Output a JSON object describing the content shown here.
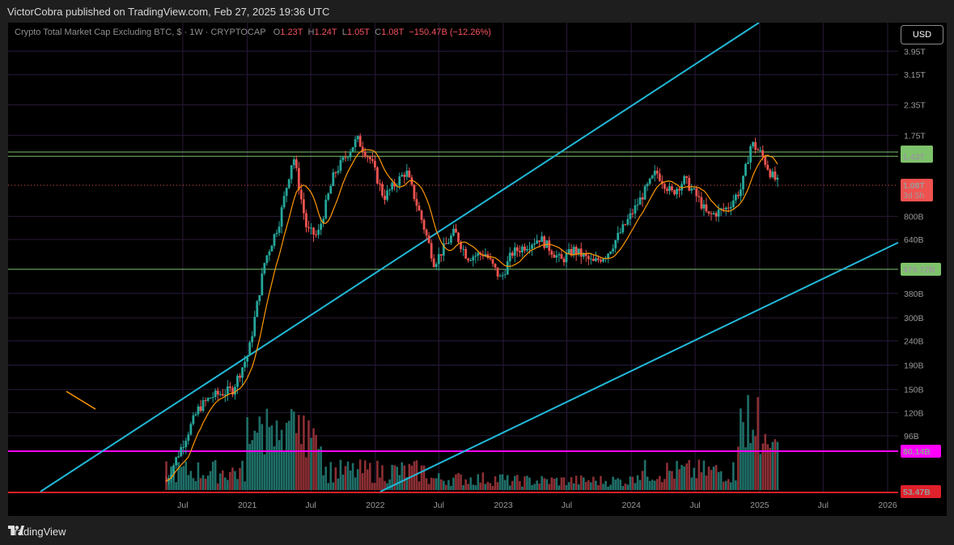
{
  "header": {
    "publisher_line": "VictorCobra published on TradingView.com, Feb 27, 2025 19:36 UTC"
  },
  "footer": {
    "brand": "TradingView"
  },
  "legend": {
    "symbol": "Crypto Total Market Cap Excluding BTC, $ · 1W · CRYPTOCAP",
    "o_label": "O",
    "o_value": "1.23T",
    "h_label": "H",
    "h_value": "1.24T",
    "l_label": "L",
    "l_value": "1.05T",
    "c_label": "C",
    "c_value": "1.08T",
    "change": "−150.47B (−12.26%)"
  },
  "currency_button": "USD",
  "colors": {
    "up": "#26a69a",
    "down": "#ef5350",
    "ma": "#ff9800",
    "trendline": "#22b8d8",
    "level": "#7ec26b",
    "magenta": "#ff00ff",
    "grid": "#2a1a3a"
  },
  "chart_data": {
    "type": "candlestick",
    "title": "Crypto Total Market Cap Excluding BTC",
    "interval": "1W",
    "scale": "log",
    "y_tick_labels": [
      "3.95T",
      "3.15T",
      "2.35T",
      "1.75T",
      "800B",
      "640B",
      "380B",
      "300B",
      "240B",
      "190B",
      "150B",
      "120B",
      "96B"
    ],
    "x_tick_labels": [
      "Jul",
      "2021",
      "Jul",
      "2022",
      "Jul",
      "2023",
      "Jul",
      "2024",
      "Jul",
      "2025",
      "Jul",
      "2026"
    ],
    "horizontal_levels": [
      {
        "label": "1.49T",
        "value": 1490,
        "color": "#7ec26b"
      },
      {
        "label": "1.43T",
        "value": 1430,
        "color": "#7ec26b"
      },
      {
        "label": "479.72B",
        "value": 479.72,
        "color": "#7ec26b"
      },
      {
        "label": "80.14B",
        "value": 80.14,
        "color": "#ff00ff"
      },
      {
        "label": "53.47B",
        "value": 53.47,
        "color": "#e0202a"
      }
    ],
    "last_price": {
      "label": "1.08T",
      "countdown": "3d 5h",
      "value": 1080
    },
    "price_series_billions": {
      "start": "2020-05",
      "end": "2025-02",
      "anchors": [
        [
          "2020-05-15",
          62
        ],
        [
          "2020-08-15",
          125
        ],
        [
          "2020-09-20",
          140
        ],
        [
          "2020-11-20",
          150
        ],
        [
          "2021-01-05",
          215
        ],
        [
          "2021-02-20",
          520
        ],
        [
          "2021-04-01",
          750
        ],
        [
          "2021-05-12",
          1450
        ],
        [
          "2021-06-20",
          700
        ],
        [
          "2021-07-20",
          660
        ],
        [
          "2021-09-05",
          1200
        ],
        [
          "2021-11-10",
          1690
        ],
        [
          "2021-12-20",
          1370
        ],
        [
          "2022-01-25",
          960
        ],
        [
          "2022-03-30",
          1240
        ],
        [
          "2022-05-15",
          760
        ],
        [
          "2022-06-18",
          510
        ],
        [
          "2022-08-15",
          690
        ],
        [
          "2022-09-20",
          540
        ],
        [
          "2022-11-10",
          560
        ],
        [
          "2022-12-25",
          435
        ],
        [
          "2023-01-25",
          560
        ],
        [
          "2023-04-15",
          650
        ],
        [
          "2023-06-15",
          520
        ],
        [
          "2023-07-20",
          580
        ],
        [
          "2023-09-15",
          510
        ],
        [
          "2023-10-25",
          560
        ],
        [
          "2023-12-20",
          760
        ],
        [
          "2024-03-12",
          1230
        ],
        [
          "2024-04-25",
          1000
        ],
        [
          "2024-06-01",
          1140
        ],
        [
          "2024-07-10",
          950
        ],
        [
          "2024-08-07",
          800
        ],
        [
          "2024-10-01",
          870
        ],
        [
          "2024-11-10",
          1050
        ],
        [
          "2024-12-08",
          1630
        ],
        [
          "2025-01-06",
          1460
        ],
        [
          "2025-02-03",
          1200
        ],
        [
          "2025-02-27",
          1080
        ]
      ]
    },
    "volume_description": "weekly volume bars along the bottom of the chart"
  }
}
